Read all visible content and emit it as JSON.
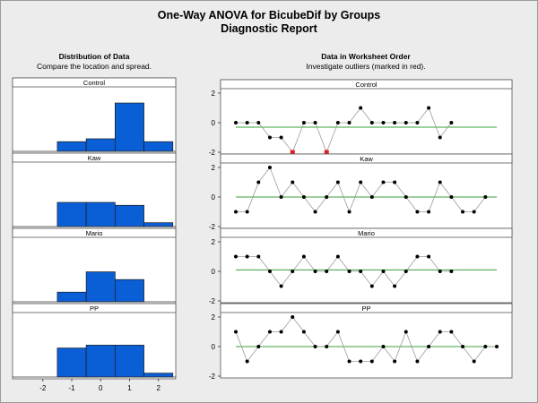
{
  "title": "One-Way ANOVA for BicubeDif by Groups",
  "subtitle": "Diagnostic Report",
  "left_section": {
    "title": "Distribution of Data",
    "subtitle": "Compare the location and spread."
  },
  "right_section": {
    "title": "Data in Worksheet Order",
    "subtitle": "Investigate outliers (marked in red)."
  },
  "colors": {
    "bar_fill": "#0a5fd6",
    "bar_stroke": "#1a1a1a",
    "mean_line": "#3aa03a",
    "outlier": "#e02020",
    "point": "#000000",
    "panel_bg": "#ffffff",
    "page_bg": "#ececec"
  },
  "chart_data": [
    {
      "type": "bar",
      "name": "Distribution of Data",
      "x_ticks": [
        "-2",
        "-1",
        "0",
        "1",
        "2"
      ],
      "bin_edges": [
        -2.5,
        -1.5,
        -0.5,
        0.5,
        1.5,
        2.5
      ],
      "groups": [
        {
          "label": "Control",
          "counts": [
            0,
            1,
            1.3,
            5,
            1
          ]
        },
        {
          "label": "Kaw",
          "counts": [
            0,
            2.5,
            2.5,
            2.2,
            0.4
          ]
        },
        {
          "label": "Mario",
          "counts": [
            0,
            1,
            3.1,
            2.3,
            0
          ]
        },
        {
          "label": "PP",
          "counts": [
            0,
            3,
            3.3,
            3.3,
            0.4
          ]
        }
      ]
    },
    {
      "type": "line",
      "name": "Data in Worksheet Order",
      "y_ticks": [
        "2",
        "0",
        "-2"
      ],
      "ylim": [
        -2,
        2
      ],
      "groups": [
        {
          "label": "Control",
          "mean": -0.3,
          "values": [
            0,
            0,
            0,
            -1,
            -1,
            -2,
            0,
            0,
            -2,
            0,
            0,
            1,
            0,
            0,
            0,
            0,
            0,
            1,
            -1,
            0
          ],
          "outliers": [
            5,
            8
          ]
        },
        {
          "label": "Kaw",
          "mean": 0,
          "values": [
            -1,
            -1,
            1,
            2,
            0,
            1,
            0,
            -1,
            0,
            1,
            -1,
            1,
            0,
            1,
            1,
            0,
            -1,
            -1,
            1,
            0,
            -1,
            -1,
            0
          ],
          "outliers": []
        },
        {
          "label": "Mario",
          "mean": 0.1,
          "values": [
            1,
            1,
            1,
            0,
            -1,
            0,
            1,
            0,
            0,
            1,
            0,
            0,
            -1,
            0,
            -1,
            0,
            1,
            1,
            0,
            0
          ],
          "outliers": []
        },
        {
          "label": "PP",
          "mean": 0,
          "values": [
            1,
            -1,
            0,
            1,
            1,
            2,
            1,
            0,
            0,
            1,
            -1,
            -1,
            -1,
            0,
            -1,
            1,
            -1,
            0,
            1,
            1,
            0,
            -1,
            0,
            0
          ],
          "outliers": []
        }
      ]
    }
  ]
}
